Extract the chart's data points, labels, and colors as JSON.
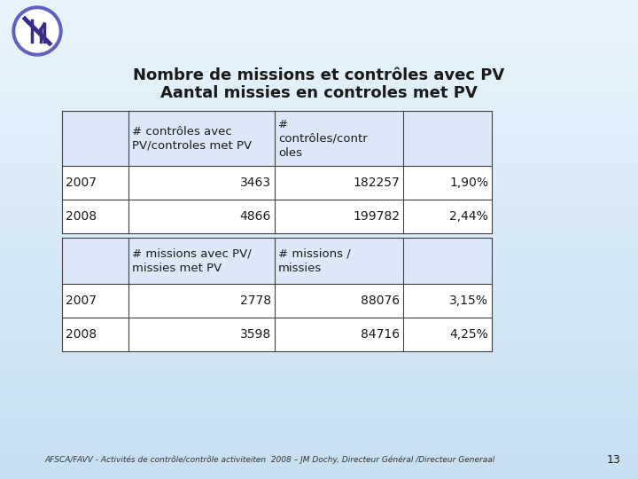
{
  "title_line1": "Nombre de missions et contrôles avec PV",
  "title_line2": "Aantal missies en controles met PV",
  "bg_color_top": "#a8c8e8",
  "bg_color_bottom": "#d0e8f8",
  "table1_headers": [
    "",
    "# contrôles avec\nPV/controles met PV",
    "#\ncontrôles/contr\noles",
    ""
  ],
  "table1_rows": [
    [
      "2007",
      "3463",
      "182257",
      "1,90%"
    ],
    [
      "2008",
      "4866",
      "199782",
      "2,44%"
    ]
  ],
  "table2_headers": [
    "",
    "# missions avec PV/\nmissies met PV",
    "# missions /\nmissies",
    ""
  ],
  "table2_rows": [
    [
      "2007",
      "2778",
      "88076",
      "3,15%"
    ],
    [
      "2008",
      "3598",
      "84716",
      "4,25%"
    ]
  ],
  "footer_text": "AFSCA/FAVV - Activités de contrôle/contrôle activiteiten  2008 – JM Dochy, Directeur Général /Directeur Generaal",
  "page_number": "13",
  "logo_color": "#3a2a8a",
  "table_bg": "#f0f4ff",
  "table_border": "#404040",
  "header_row_bg": "#dce8f8",
  "data_row_bg": "#ffffff"
}
